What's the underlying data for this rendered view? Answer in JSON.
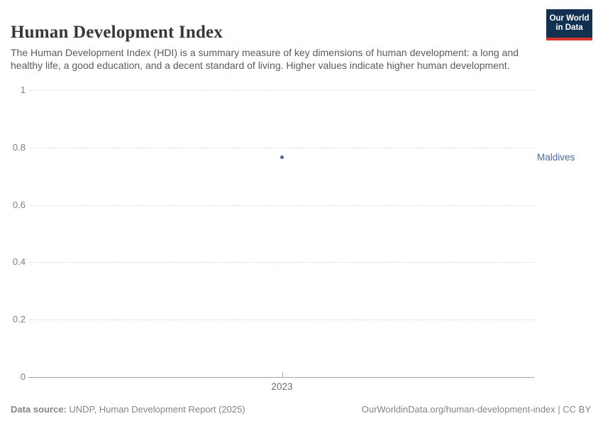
{
  "header": {
    "title": "Human Development Index",
    "subtitle": "The Human Development Index (HDI) is a summary measure of key dimensions of human development: a long and healthy life, a good education, and a decent standard of living. Higher values indicate higher human development.",
    "logo": {
      "line1": "Our World",
      "line2": "in Data"
    }
  },
  "chart_data": {
    "type": "scatter",
    "title": "Human Development Index",
    "x": [
      2023
    ],
    "xticks": [
      2023
    ],
    "series": [
      {
        "name": "Maldives",
        "values": [
          0.766
        ],
        "color": "#4c6a9c"
      }
    ],
    "xlabel": "",
    "ylabel": "",
    "ylim": [
      0,
      1
    ],
    "yticks": [
      0,
      0.2,
      0.4,
      0.6,
      0.8,
      1
    ],
    "grid": "horizontal-dashed",
    "legend_position": "entity label right of plot area"
  },
  "footer": {
    "source_label": "Data source:",
    "source_text": "UNDP, Human Development Report (2025)",
    "attribution": "OurWorldinData.org/human-development-index | CC BY"
  },
  "colors": {
    "accent_blue": "#4c6a9c",
    "logo_navy": "#12304f",
    "logo_red": "#d8352e",
    "title_text": "#373737",
    "subtitle_text": "#5b5b5b",
    "axis_text": "#808080",
    "gridline": "#dcdcdc",
    "axis_line": "#a3a3a3",
    "footer_text": "#858585"
  }
}
